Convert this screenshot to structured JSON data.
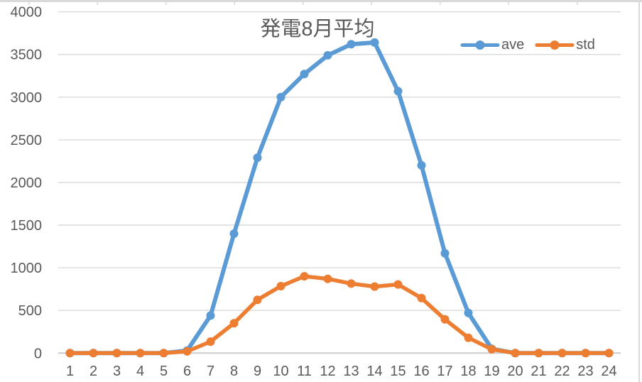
{
  "chart": {
    "title": "発電8月平均",
    "text_color": "#595959",
    "grid_color": "#dadada",
    "axis_color": "#cccccc",
    "worksheet_edge_color": "#d9d9d9",
    "legend_position": "top-right"
  },
  "chart_data": {
    "type": "line",
    "title": "発電8月平均",
    "xlabel": "",
    "ylabel": "",
    "x": [
      1,
      2,
      3,
      4,
      5,
      6,
      7,
      8,
      9,
      10,
      11,
      12,
      13,
      14,
      15,
      16,
      17,
      18,
      19,
      20,
      21,
      22,
      23,
      24
    ],
    "ylim": [
      0,
      4000
    ],
    "ytick_step": 500,
    "grid": true,
    "legend_position": "top-right",
    "series": [
      {
        "name": "ave",
        "color": "#5B9BD5",
        "marker": "circle",
        "values": [
          0,
          0,
          0,
          0,
          0,
          30,
          440,
          1400,
          2290,
          3000,
          3270,
          3490,
          3620,
          3640,
          3070,
          2200,
          1170,
          470,
          50,
          0,
          0,
          0,
          0,
          0
        ]
      },
      {
        "name": "std",
        "color": "#ED7D31",
        "marker": "circle",
        "values": [
          0,
          0,
          0,
          0,
          0,
          20,
          135,
          350,
          625,
          785,
          900,
          870,
          815,
          780,
          805,
          645,
          395,
          180,
          45,
          0,
          0,
          0,
          0,
          0
        ]
      }
    ]
  }
}
